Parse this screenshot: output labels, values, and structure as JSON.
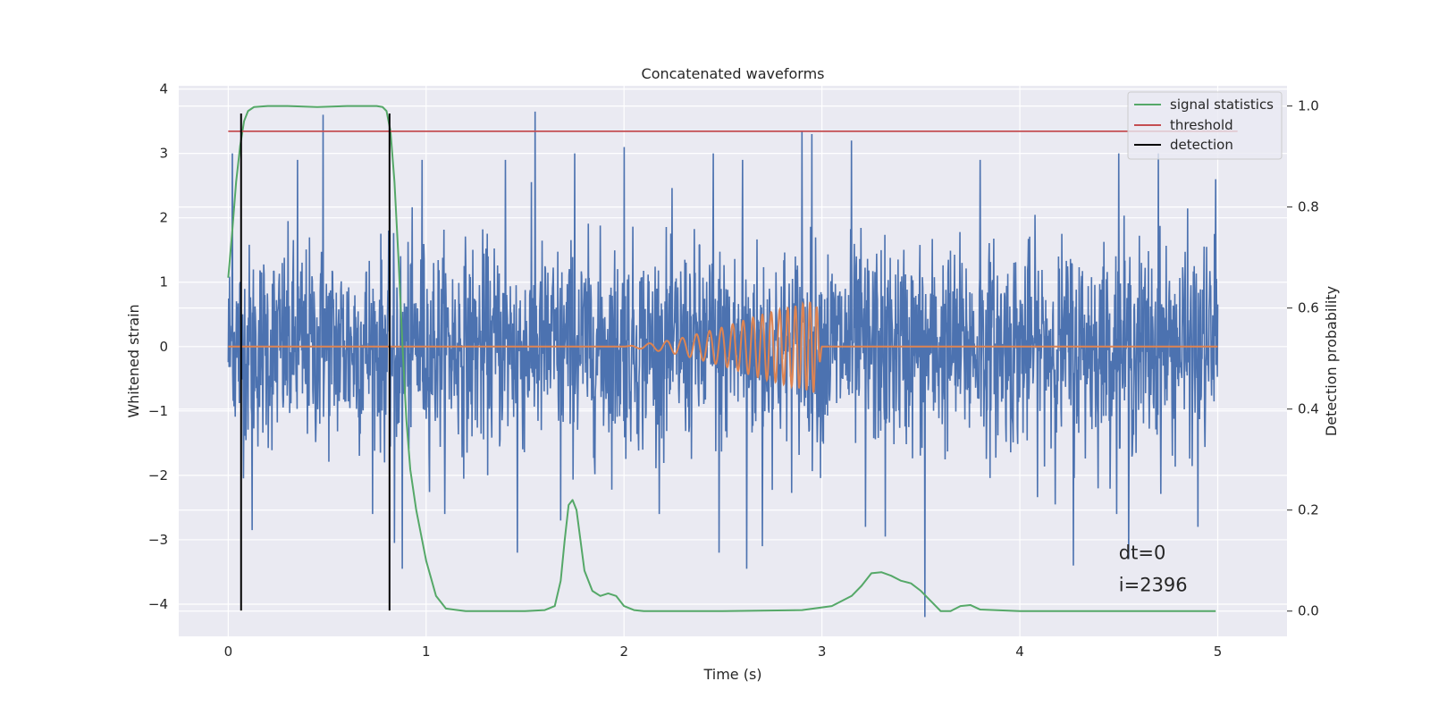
{
  "chart_data": {
    "type": "line",
    "title": "Concatenated waveforms",
    "xlabel": "Time (s)",
    "ylabel": "Whitened strain",
    "y2label": "Detection probability",
    "xlim": [
      -0.25,
      5.35
    ],
    "ylim": [
      -4.5,
      4.05
    ],
    "y2lim": [
      -0.05,
      1.04
    ],
    "xticks": [
      0,
      1,
      2,
      3,
      4,
      5
    ],
    "xtick_labels": [
      "0",
      "1",
      "2",
      "3",
      "4",
      "5"
    ],
    "yticks": [
      4,
      3,
      2,
      1,
      0,
      -1,
      -2,
      -3,
      -4
    ],
    "ytick_labels": [
      "4",
      "3",
      "2",
      "1",
      "0",
      "−1",
      "−2",
      "−3",
      "−4"
    ],
    "y2ticks": [
      1.0,
      0.8,
      0.6,
      0.4,
      0.2,
      0.0
    ],
    "y2tick_labels": [
      "1.0",
      "0.8",
      "0.6",
      "0.4",
      "0.2",
      "0.0"
    ],
    "grid": true,
    "legend_position": "top-right",
    "legend": [
      {
        "label": "signal statistics",
        "color": "#55a868"
      },
      {
        "label": "threshold",
        "color": "#c44e52"
      },
      {
        "label": "detection",
        "color": "#000000"
      }
    ],
    "series": [
      {
        "color": "#4c72b0",
        "axis": "left",
        "description": "whitened noisy strain",
        "x_range": [
          0,
          5
        ],
        "approx_peaks": [
          [
            0.02,
            3.0
          ],
          [
            0.35,
            2.9
          ],
          [
            0.48,
            3.6
          ],
          [
            0.98,
            2.9
          ],
          [
            1.4,
            2.9
          ],
          [
            1.55,
            3.65
          ],
          [
            1.75,
            3.0
          ],
          [
            2.0,
            3.1
          ],
          [
            2.45,
            3.0
          ],
          [
            2.6,
            2.9
          ],
          [
            2.9,
            3.35
          ],
          [
            2.95,
            3.3
          ],
          [
            3.15,
            3.2
          ],
          [
            3.8,
            2.9
          ],
          [
            4.5,
            3.0
          ],
          [
            4.7,
            3.0
          ],
          [
            4.99,
            2.6
          ]
        ],
        "approx_troughs": [
          [
            0.12,
            -2.85
          ],
          [
            0.84,
            -3.05
          ],
          [
            0.88,
            -3.45
          ],
          [
            1.46,
            -3.2
          ],
          [
            1.68,
            -2.7
          ],
          [
            2.48,
            -3.2
          ],
          [
            2.62,
            -3.45
          ],
          [
            2.7,
            -3.1
          ],
          [
            3.22,
            -2.8
          ],
          [
            3.32,
            -2.95
          ],
          [
            3.52,
            -4.2
          ],
          [
            4.27,
            -3.4
          ],
          [
            4.55,
            -3.3
          ],
          [
            4.9,
            -2.8
          ]
        ]
      },
      {
        "color": "#dd8452",
        "axis": "left",
        "description": "injected chirp waveform",
        "x": [
          0,
          2.0,
          2.1,
          2.2,
          2.3,
          2.4,
          2.5,
          2.6,
          2.7,
          2.8,
          2.9,
          2.97,
          3.0,
          5.0
        ],
        "y_amplitude": [
          0,
          0,
          0.04,
          0.08,
          0.14,
          0.22,
          0.3,
          0.4,
          0.5,
          0.58,
          0.66,
          0.72,
          0,
          0
        ],
        "chirp_end": 3.0
      },
      {
        "name": "signal statistics",
        "color": "#55a868",
        "axis": "right",
        "x": [
          0.0,
          0.02,
          0.04,
          0.06,
          0.08,
          0.1,
          0.13,
          0.2,
          0.3,
          0.45,
          0.6,
          0.75,
          0.78,
          0.8,
          0.82,
          0.84,
          0.86,
          0.88,
          0.9,
          0.92,
          0.95,
          1.0,
          1.05,
          1.1,
          1.2,
          1.5,
          1.6,
          1.65,
          1.68,
          1.7,
          1.72,
          1.74,
          1.76,
          1.78,
          1.8,
          1.84,
          1.88,
          1.92,
          1.96,
          2.0,
          2.05,
          2.1,
          2.5,
          2.9,
          3.05,
          3.15,
          3.2,
          3.25,
          3.3,
          3.35,
          3.4,
          3.45,
          3.5,
          3.55,
          3.6,
          3.65,
          3.7,
          3.75,
          3.8,
          4.0,
          4.5,
          4.99
        ],
        "y": [
          0.66,
          0.75,
          0.85,
          0.92,
          0.97,
          0.99,
          0.998,
          1.0,
          1.0,
          0.998,
          1.0,
          1.0,
          0.998,
          0.99,
          0.95,
          0.85,
          0.7,
          0.53,
          0.38,
          0.28,
          0.2,
          0.1,
          0.03,
          0.005,
          0.0,
          0.0,
          0.002,
          0.01,
          0.06,
          0.14,
          0.21,
          0.22,
          0.2,
          0.14,
          0.08,
          0.04,
          0.03,
          0.035,
          0.03,
          0.01,
          0.002,
          0.0,
          0.0,
          0.002,
          0.01,
          0.03,
          0.05,
          0.075,
          0.077,
          0.07,
          0.06,
          0.055,
          0.04,
          0.02,
          0.0,
          0.0,
          0.01,
          0.012,
          0.003,
          0.0,
          0.0,
          0.0
        ]
      },
      {
        "name": "threshold",
        "color": "#c44e52",
        "axis": "right",
        "x": [
          0,
          5.1
        ],
        "y": [
          0.95,
          0.95
        ]
      },
      {
        "name": "detection",
        "color": "#000000",
        "axis": "left",
        "type": "vlines",
        "x": [
          0.065,
          0.815
        ],
        "ymin": -4.1,
        "ymax": 3.62
      }
    ],
    "annotations": [
      {
        "text": "dt=0",
        "x": 4.5,
        "y": -3.3
      },
      {
        "text": "i=2396",
        "x": 4.5,
        "y": -3.8
      }
    ]
  }
}
